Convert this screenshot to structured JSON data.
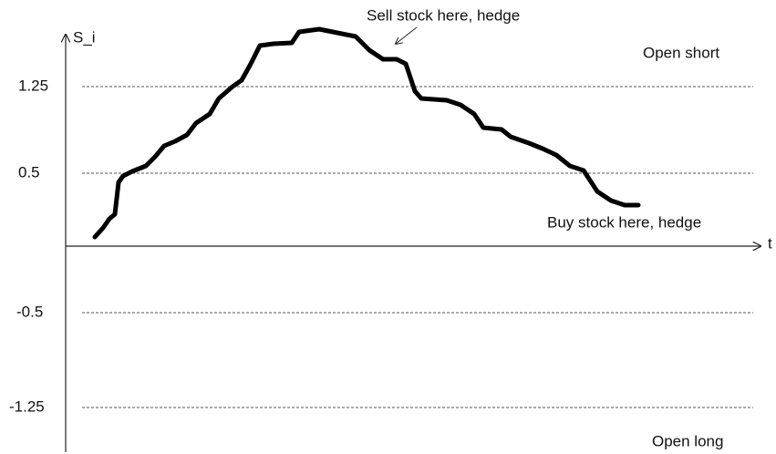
{
  "axes": {
    "y_label": "S_i",
    "x_label": "t"
  },
  "levels": [
    "1.25",
    "0.5",
    "-0.5",
    "-1.25"
  ],
  "zones": {
    "top": "Open short",
    "bottom": "Open long"
  },
  "annotations": {
    "sell": "Sell stock here, hedge",
    "buy": "Buy stock here, hedge"
  }
}
